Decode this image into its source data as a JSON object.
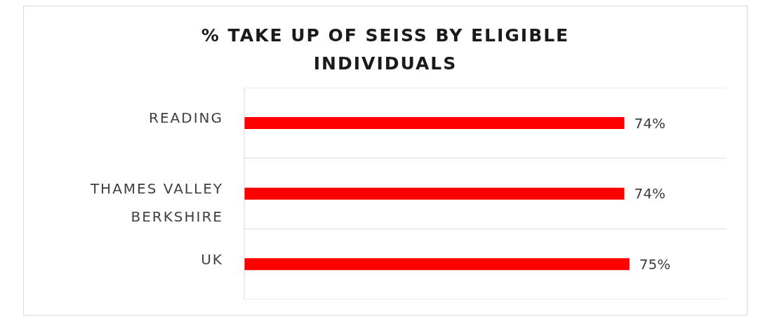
{
  "chart_data": {
    "type": "bar",
    "orientation": "horizontal",
    "title": "% TAKE UP OF SEISS BY ELIGIBLE INDIVIDUALS",
    "categories": [
      "READING",
      "THAMES VALLEY BERKSHIRE",
      "UK"
    ],
    "values": [
      74,
      74,
      75
    ],
    "color": "#ff0000",
    "value_labels": [
      "74%",
      "74%",
      "75%"
    ],
    "grid": "y"
  }
}
